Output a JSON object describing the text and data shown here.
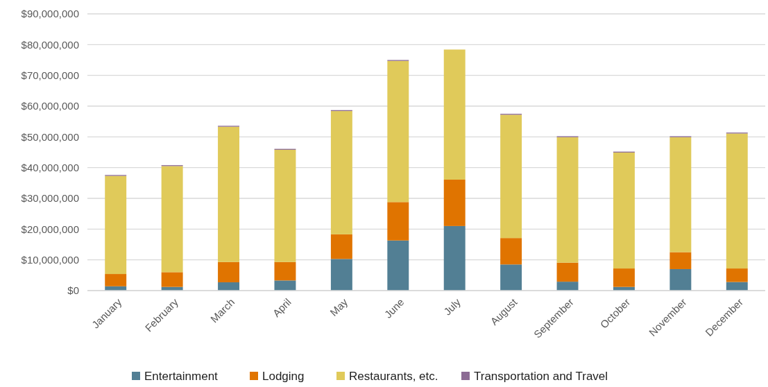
{
  "chart_data": {
    "type": "bar",
    "stacked": true,
    "categories": [
      "January",
      "February",
      "March",
      "April",
      "May",
      "June",
      "July",
      "August",
      "September",
      "October",
      "November",
      "December"
    ],
    "series": [
      {
        "name": "Entertainment",
        "color": "#527f94",
        "values": [
          1400000,
          1200000,
          2700000,
          3300000,
          10300000,
          16300000,
          21000000,
          8500000,
          2900000,
          1200000,
          7000000,
          2800000
        ]
      },
      {
        "name": "Lodging",
        "color": "#e07400",
        "values": [
          4000000,
          4800000,
          6600000,
          6000000,
          8000000,
          12500000,
          15100000,
          8600000,
          6200000,
          6000000,
          5500000,
          4400000
        ]
      },
      {
        "name": "Restaurants, etc.",
        "color": "#e0ca5a",
        "values": [
          31900000,
          34500000,
          44000000,
          36500000,
          40100000,
          45900000,
          42300000,
          40100000,
          40800000,
          37700000,
          37400000,
          43900000
        ]
      },
      {
        "name": "Transportation and Travel",
        "color": "#8c6b94",
        "values": [
          300000,
          300000,
          300000,
          300000,
          300000,
          300000,
          null,
          300000,
          300000,
          300000,
          300000,
          300000
        ]
      }
    ],
    "ylim": [
      0,
      90000000
    ],
    "yticks": [
      {
        "value": 0,
        "label": "$0"
      },
      {
        "value": 10000000,
        "label": "$10,000,000"
      },
      {
        "value": 20000000,
        "label": "$20,000,000"
      },
      {
        "value": 30000000,
        "label": "$30,000,000"
      },
      {
        "value": 40000000,
        "label": "$40,000,000"
      },
      {
        "value": 50000000,
        "label": "$50,000,000"
      },
      {
        "value": 60000000,
        "label": "$60,000,000"
      },
      {
        "value": 70000000,
        "label": "$70,000,000"
      },
      {
        "value": 80000000,
        "label": "$80,000,000"
      },
      {
        "value": 90000000,
        "label": "$90,000,000"
      }
    ],
    "grid": "y",
    "legend": "bottom"
  }
}
